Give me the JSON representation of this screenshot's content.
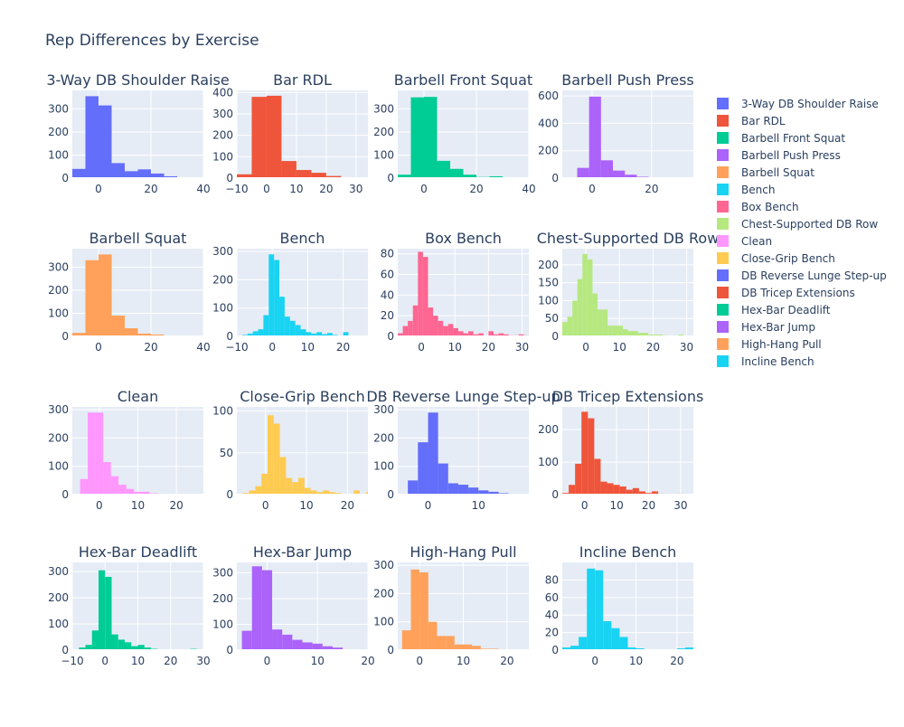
{
  "title": "Rep Differences by Exercise",
  "colors": {
    "grid_bg": "#E5ECF6",
    "grid_line": "#ffffff",
    "text": "#2a3f5f"
  },
  "chart_data": {
    "type": "bar",
    "grid": true,
    "legend_placement": "right",
    "legend": [
      {
        "name": "3-Way DB Shoulder Raise",
        "color": "#636EFA"
      },
      {
        "name": "Bar RDL",
        "color": "#EF553B"
      },
      {
        "name": "Barbell Front Squat",
        "color": "#00CC96"
      },
      {
        "name": "Barbell Push Press",
        "color": "#AB63FA"
      },
      {
        "name": "Barbell Squat",
        "color": "#FFA15A"
      },
      {
        "name": "Bench",
        "color": "#19D3F3"
      },
      {
        "name": "Box Bench",
        "color": "#FF6692"
      },
      {
        "name": "Chest-Supported DB Row",
        "color": "#B6E880"
      },
      {
        "name": "Clean",
        "color": "#FF97FF"
      },
      {
        "name": "Close-Grip Bench",
        "color": "#FECB52"
      },
      {
        "name": "DB Reverse Lunge Step-up",
        "color": "#636EFA"
      },
      {
        "name": "DB Tricep Extensions",
        "color": "#EF553B"
      },
      {
        "name": "Hex-Bar Deadlift",
        "color": "#00CC96"
      },
      {
        "name": "Hex-Bar Jump",
        "color": "#AB63FA"
      },
      {
        "name": "High-Hang Pull",
        "color": "#FFA15A"
      },
      {
        "name": "Incline Bench",
        "color": "#19D3F3"
      }
    ],
    "subplots": [
      {
        "title": "3-Way DB Shoulder Raise",
        "color": "#636EFA",
        "xlim": [
          -10,
          40
        ],
        "ylim": [
          0,
          380
        ],
        "xticks": [
          0,
          20,
          40
        ],
        "yticks": [
          0,
          100,
          200,
          300
        ],
        "bin_start": -10,
        "bin_size": 5,
        "values": [
          40,
          355,
          315,
          65,
          30,
          38,
          20,
          8,
          3,
          1
        ]
      },
      {
        "title": "Bar RDL",
        "color": "#EF553B",
        "xlim": [
          -10,
          34
        ],
        "ylim": [
          0,
          410
        ],
        "xticks": [
          -10,
          0,
          10,
          20,
          30
        ],
        "yticks": [
          0,
          100,
          200,
          300,
          400
        ],
        "bin_start": -10,
        "bin_size": 5,
        "values": [
          18,
          380,
          385,
          80,
          38,
          25,
          10,
          4,
          1
        ]
      },
      {
        "title": "Barbell Front Squat",
        "color": "#00CC96",
        "xlim": [
          -10,
          40
        ],
        "ylim": [
          0,
          380
        ],
        "xticks": [
          0,
          20,
          40
        ],
        "yticks": [
          0,
          100,
          200,
          300
        ],
        "bin_start": -10,
        "bin_size": 5,
        "values": [
          15,
          350,
          352,
          75,
          40,
          15,
          5,
          8,
          3,
          1
        ]
      },
      {
        "title": "Barbell Push Press",
        "color": "#AB63FA",
        "xlim": [
          -10,
          34
        ],
        "ylim": [
          0,
          640
        ],
        "xticks": [
          0,
          20
        ],
        "yticks": [
          0,
          200,
          400,
          600
        ],
        "bin_start": -5,
        "bin_size": 4,
        "values": [
          75,
          595,
          130,
          55,
          25,
          10,
          5,
          5,
          2
        ]
      },
      {
        "title": "Barbell Squat",
        "color": "#FFA15A",
        "xlim": [
          -10,
          40
        ],
        "ylim": [
          0,
          380
        ],
        "xticks": [
          0,
          20,
          40
        ],
        "yticks": [
          0,
          100,
          200,
          300
        ],
        "bin_start": -10,
        "bin_size": 5,
        "values": [
          15,
          330,
          355,
          90,
          35,
          12,
          8,
          3,
          1,
          1
        ]
      },
      {
        "title": "Bench",
        "color": "#19D3F3",
        "xlim": [
          -10,
          27
        ],
        "ylim": [
          0,
          310
        ],
        "xticks": [
          -10,
          0,
          10,
          20
        ],
        "yticks": [
          0,
          100,
          200,
          300
        ],
        "bin_start": -10,
        "bin_size": 1.5,
        "values": [
          3,
          5,
          10,
          18,
          25,
          75,
          290,
          270,
          140,
          70,
          55,
          40,
          25,
          15,
          10,
          15,
          8,
          12,
          5,
          3,
          15,
          0,
          3,
          2,
          1
        ]
      },
      {
        "title": "Box Bench",
        "color": "#FF6692",
        "xlim": [
          -7,
          32
        ],
        "ylim": [
          0,
          85
        ],
        "xticks": [
          0,
          10,
          20,
          30
        ],
        "yticks": [
          0,
          20,
          40,
          60,
          80
        ],
        "bin_start": -7,
        "bin_size": 1.5,
        "values": [
          3,
          10,
          15,
          30,
          82,
          77,
          28,
          20,
          15,
          10,
          12,
          8,
          5,
          3,
          5,
          2,
          3,
          0,
          5,
          2,
          3,
          2,
          1,
          1,
          2,
          1
        ]
      },
      {
        "title": "Chest-Supported DB Row",
        "color": "#B6E880",
        "xlim": [
          -7,
          32
        ],
        "ylim": [
          0,
          245
        ],
        "xticks": [
          0,
          10,
          20,
          30
        ],
        "yticks": [
          0,
          50,
          100,
          150,
          200
        ],
        "bin_start": -7,
        "bin_size": 1.5,
        "values": [
          40,
          55,
          100,
          160,
          230,
          215,
          120,
          75,
          75,
          30,
          30,
          30,
          20,
          15,
          15,
          10,
          10,
          5,
          5,
          5,
          3,
          2,
          1,
          5,
          2,
          1
        ]
      },
      {
        "title": "Clean",
        "color": "#FF97FF",
        "xlim": [
          -7,
          27
        ],
        "ylim": [
          0,
          310
        ],
        "xticks": [
          0,
          10,
          20
        ],
        "yticks": [
          0,
          100,
          200,
          300
        ],
        "bin_start": -5,
        "bin_size": 2,
        "values": [
          55,
          290,
          290,
          115,
          65,
          35,
          20,
          10,
          10,
          5,
          3,
          2,
          1,
          1,
          1,
          1
        ]
      },
      {
        "title": "Close-Grip Bench",
        "color": "#FECB52",
        "xlim": [
          -7,
          25
        ],
        "ylim": [
          0,
          105
        ],
        "xticks": [
          0,
          10,
          20
        ],
        "yticks": [
          0,
          50,
          100
        ],
        "bin_start": -7,
        "bin_size": 1.5,
        "values": [
          0,
          2,
          5,
          10,
          25,
          95,
          85,
          45,
          20,
          15,
          20,
          8,
          5,
          3,
          5,
          3,
          2,
          0,
          1,
          5,
          1,
          3
        ]
      },
      {
        "title": "DB Reverse Lunge Step-up",
        "color": "#636EFA",
        "xlim": [
          -6,
          20
        ],
        "ylim": [
          0,
          310
        ],
        "xticks": [
          0,
          10
        ],
        "yticks": [
          0,
          100,
          200,
          300
        ],
        "bin_start": -6,
        "bin_size": 2,
        "values": [
          0,
          50,
          185,
          290,
          110,
          40,
          35,
          25,
          15,
          10,
          5,
          2,
          1
        ]
      },
      {
        "title": "DB Tricep Extensions",
        "color": "#EF553B",
        "xlim": [
          -7,
          34
        ],
        "ylim": [
          0,
          270
        ],
        "xticks": [
          0,
          10,
          20,
          30
        ],
        "yticks": [
          0,
          100,
          200
        ],
        "bin_start": -7,
        "bin_size": 2,
        "values": [
          5,
          30,
          95,
          255,
          235,
          110,
          40,
          35,
          30,
          25,
          15,
          20,
          10,
          5,
          10,
          3,
          2,
          2,
          3,
          2
        ]
      },
      {
        "title": "Hex-Bar Deadlift",
        "color": "#00CC96",
        "xlim": [
          -10,
          30
        ],
        "ylim": [
          0,
          335
        ],
        "xticks": [
          -10,
          0,
          10,
          20,
          30
        ],
        "yticks": [
          0,
          100,
          200,
          300
        ],
        "bin_start": -10,
        "bin_size": 2,
        "values": [
          0,
          10,
          20,
          75,
          305,
          280,
          60,
          40,
          30,
          15,
          20,
          10,
          5,
          2,
          1,
          3,
          1,
          2,
          5,
          1
        ]
      },
      {
        "title": "Hex-Bar Jump",
        "color": "#AB63FA",
        "xlim": [
          -6,
          20
        ],
        "ylim": [
          0,
          340
        ],
        "xticks": [
          0,
          10,
          20
        ],
        "yticks": [
          0,
          100,
          200,
          300
        ],
        "bin_start": -5,
        "bin_size": 2,
        "values": [
          75,
          325,
          310,
          80,
          60,
          40,
          30,
          25,
          15,
          10,
          0,
          1
        ]
      },
      {
        "title": "High-Hang Pull",
        "color": "#FFA15A",
        "xlim": [
          -5,
          25
        ],
        "ylim": [
          0,
          310
        ],
        "xticks": [
          0,
          10,
          20
        ],
        "yticks": [
          0,
          100,
          200,
          300
        ],
        "bin_start": -4,
        "bin_size": 2,
        "values": [
          70,
          285,
          275,
          100,
          50,
          50,
          20,
          20,
          15,
          5,
          5,
          1,
          0,
          1
        ]
      },
      {
        "title": "Incline Bench",
        "color": "#19D3F3",
        "xlim": [
          -8,
          24
        ],
        "ylim": [
          0,
          100
        ],
        "xticks": [
          0,
          10,
          20
        ],
        "yticks": [
          0,
          20,
          40,
          60,
          80
        ],
        "bin_start": -8,
        "bin_size": 2,
        "values": [
          3,
          5,
          15,
          93,
          91,
          33,
          25,
          15,
          3,
          2,
          1,
          1,
          0,
          1,
          2,
          3
        ]
      }
    ]
  }
}
